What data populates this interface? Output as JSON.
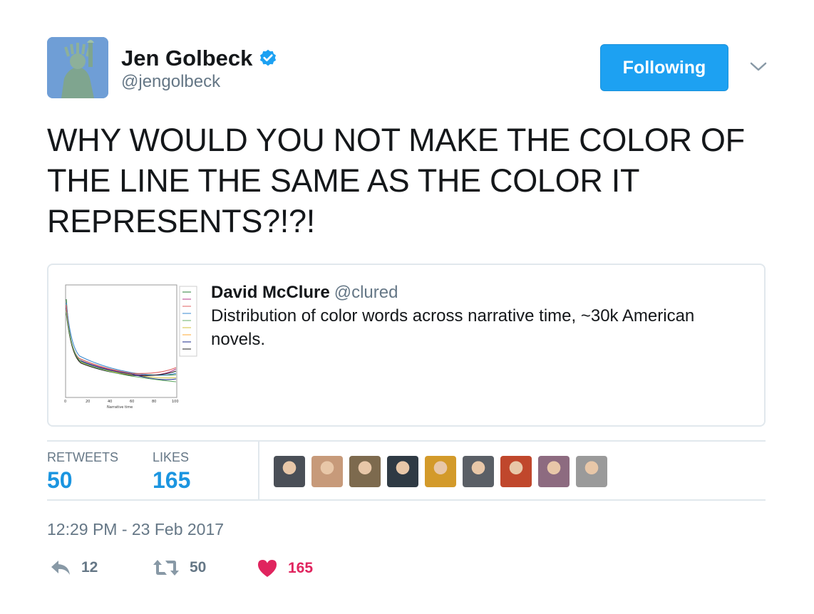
{
  "author": {
    "name": "Jen Golbeck",
    "handle": "@jengolbeck"
  },
  "follow_button": {
    "label": "Following"
  },
  "tweet": {
    "text": "WHY WOULD YOU NOT MAKE THE COLOR OF THE LINE THE SAME AS THE COLOR IT REPRESENTS?!?!"
  },
  "quoted": {
    "name": "David McClure",
    "handle": "@clured",
    "text": "Distribution of color words across narrative time, ~30k American novels.",
    "thumb_xlabel": "Narrative time",
    "thumb_ticks": [
      "0",
      "20",
      "40",
      "60",
      "80",
      "100"
    ]
  },
  "stats": {
    "retweets_label": "RETWEETS",
    "retweets_value": "50",
    "likes_label": "LIKES",
    "likes_value": "165"
  },
  "likers": [
    {
      "color": "#4a4f57"
    },
    {
      "color": "#c79a7a"
    },
    {
      "color": "#7d6a4e"
    },
    {
      "color": "#2f3a44"
    },
    {
      "color": "#d39a2a"
    },
    {
      "color": "#5a5f66"
    },
    {
      "color": "#c0472c"
    },
    {
      "color": "#8d6b80"
    },
    {
      "color": "#9a9a9a"
    }
  ],
  "timestamp": "12:29 PM - 23 Feb 2017",
  "actions": {
    "reply_count": "12",
    "retweet_count": "50",
    "like_count": "165"
  },
  "colors": {
    "accent": "#1da1f2",
    "like": "#e0245e",
    "muted": "#657786"
  }
}
